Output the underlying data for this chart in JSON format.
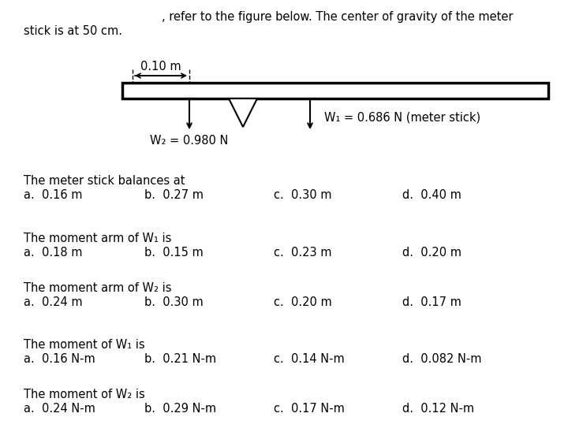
{
  "header_line1": ", refer to the figure below. The center of gravity of the meter",
  "header_line2": "stick is at 50 cm.",
  "distance_label": "0.10 m",
  "W2_label": "W₂ = 0.980 N",
  "W1_label": "W₁ = 0.686 N (meter stick)",
  "questions": [
    {
      "question": "The meter stick balances at",
      "options": [
        "a.  0.16 m",
        "b.  0.27 m",
        "c.  0.30 m",
        "d.  0.40 m"
      ]
    },
    {
      "question": "The moment arm of W₁ is",
      "options": [
        "a.  0.18 m",
        "b.  0.15 m",
        "c.  0.23 m",
        "d.  0.20 m"
      ]
    },
    {
      "question": "The moment arm of W₂ is",
      "options": [
        "a.  0.24 m",
        "b.  0.30 m",
        "c.  0.20 m",
        "d.  0.17 m"
      ]
    },
    {
      "question": "The moment of W₁ is",
      "options": [
        "a.  0.16 N-m",
        "b.  0.21 N-m",
        "c.  0.14 N-m",
        "d.  0.082 N-m"
      ]
    },
    {
      "question": "The moment of W₂ is",
      "options": [
        "a.  0.24 N-m",
        "b.  0.29 N-m",
        "c.  0.17 N-m",
        "d.  0.12 N-m"
      ]
    }
  ],
  "bg_color": "#ffffff",
  "text_color": "#000000",
  "fig_width": 7.2,
  "fig_height": 5.62,
  "dpi": 100
}
